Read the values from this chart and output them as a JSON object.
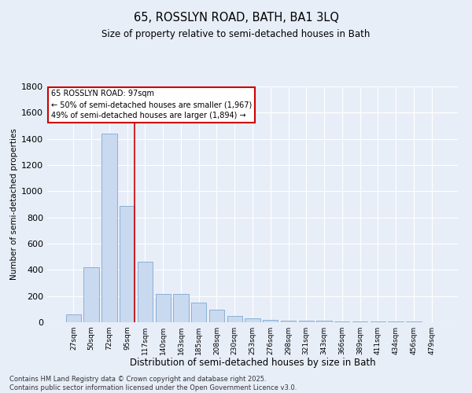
{
  "title_line1": "65, ROSSLYN ROAD, BATH, BA1 3LQ",
  "title_line2": "Size of property relative to semi-detached houses in Bath",
  "xlabel": "Distribution of semi-detached houses by size in Bath",
  "ylabel": "Number of semi-detached properties",
  "categories": [
    "27sqm",
    "50sqm",
    "72sqm",
    "95sqm",
    "117sqm",
    "140sqm",
    "163sqm",
    "185sqm",
    "208sqm",
    "230sqm",
    "253sqm",
    "276sqm",
    "298sqm",
    "321sqm",
    "343sqm",
    "366sqm",
    "389sqm",
    "411sqm",
    "434sqm",
    "456sqm",
    "479sqm"
  ],
  "values": [
    60,
    420,
    1440,
    890,
    460,
    215,
    215,
    150,
    95,
    50,
    30,
    20,
    15,
    15,
    10,
    8,
    5,
    5,
    5,
    8,
    2
  ],
  "bar_color": "#c9d9f0",
  "bar_edge_color": "#7fa8d0",
  "vline_index": 3,
  "vline_color": "#cc0000",
  "annotation_text": "65 ROSSLYN ROAD: 97sqm\n← 50% of semi-detached houses are smaller (1,967)\n49% of semi-detached houses are larger (1,894) →",
  "annotation_box_color": "#ffffff",
  "annotation_box_edge": "#cc0000",
  "footer_text": "Contains HM Land Registry data © Crown copyright and database right 2025.\nContains public sector information licensed under the Open Government Licence v3.0.",
  "ylim": [
    0,
    1800
  ],
  "yticks": [
    0,
    200,
    400,
    600,
    800,
    1000,
    1200,
    1400,
    1600,
    1800
  ],
  "background_color": "#e8eef8",
  "grid_color": "#ffffff",
  "fig_width": 6.0,
  "fig_height": 5.0
}
